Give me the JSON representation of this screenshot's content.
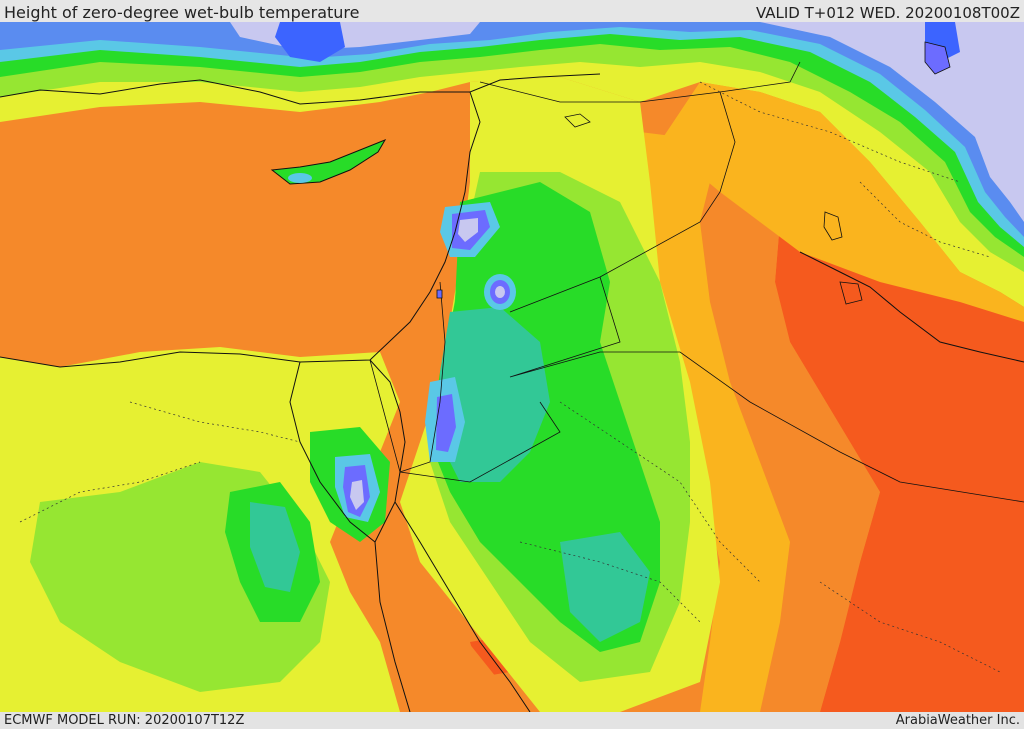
{
  "header": {
    "title": "Height of zero-degree wet-bulb temperature",
    "valid": "VALID T+012 WED. 20200108T00Z"
  },
  "footer": {
    "model_run": "ECMWF MODEL RUN: 20200107T12Z",
    "credit": "ArabiaWeather Inc."
  },
  "palette": {
    "very_low": "#6c6cff",
    "low_blue": "#5a8cf0",
    "cyan": "#5ac8e6",
    "teal": "#32c896",
    "green": "#28dc28",
    "light_green": "#96e632",
    "yellow_green": "#e6f032",
    "yellow": "#fadc1e",
    "orange_light": "#fab41e",
    "orange": "#f5892a",
    "red_orange": "#f55a1e",
    "lavender": "#c8c8f0",
    "deep_blue": "#3c64ff"
  }
}
